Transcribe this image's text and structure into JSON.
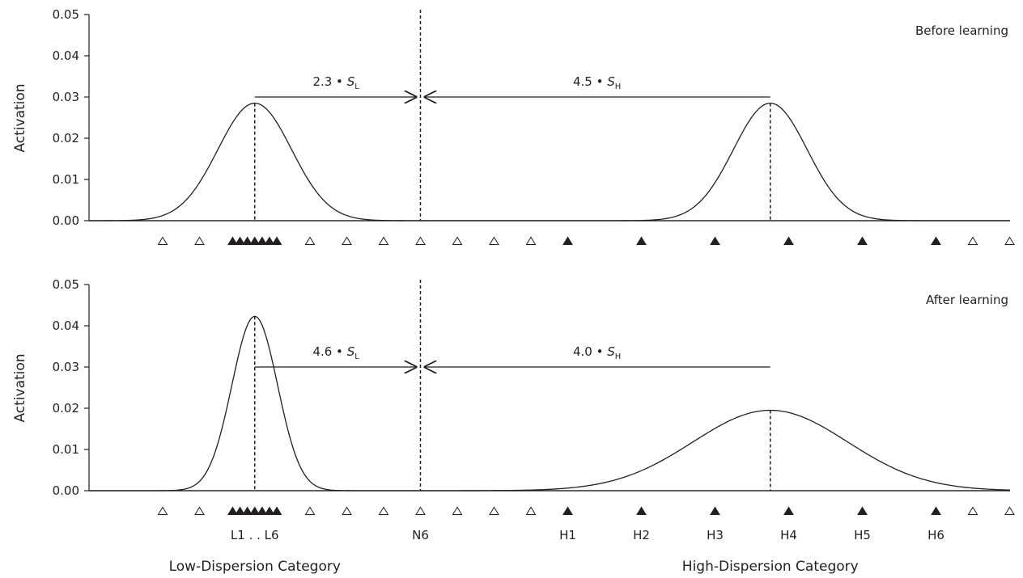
{
  "chart_data": [
    {
      "type": "line",
      "panel_title": "Before learning",
      "ylabel": "Activation",
      "ylim": [
        0,
        0.05
      ],
      "yticks": [
        "0.00",
        "0.01",
        "0.02",
        "0.03",
        "0.04",
        "0.05"
      ],
      "xrange": [
        -2,
        23
      ],
      "grid": false,
      "series": [
        {
          "mean": 2.5,
          "sd": 1.0,
          "peak": 0.0285
        },
        {
          "mean": 16.5,
          "sd": 1.0,
          "peak": 0.0285
        }
      ],
      "reference_line_x": 7,
      "annotations": [
        {
          "prefix": "2.3 • ",
          "sym": "S",
          "sub": "L",
          "from_x": 2.5,
          "to_x": 7,
          "y": 0.03
        },
        {
          "prefix": "4.5 • ",
          "sym": "S",
          "sub": "H",
          "from_x": 16.5,
          "to_x": 7,
          "y": 0.03
        }
      ]
    },
    {
      "type": "line",
      "panel_title": "After learning",
      "ylabel": "Activation",
      "ylim": [
        0,
        0.05
      ],
      "yticks": [
        "0.00",
        "0.01",
        "0.02",
        "0.03",
        "0.04",
        "0.05"
      ],
      "xrange": [
        -2,
        23
      ],
      "grid": false,
      "series": [
        {
          "mean": 2.5,
          "sd": 0.62,
          "peak": 0.0423
        },
        {
          "mean": 16.5,
          "sd": 2.1,
          "peak": 0.0195
        }
      ],
      "reference_line_x": 7,
      "annotations": [
        {
          "prefix": "4.6 • ",
          "sym": "S",
          "sub": "L",
          "from_x": 2.5,
          "to_x": 7,
          "y": 0.03
        },
        {
          "prefix": "4.0 • ",
          "sym": "S",
          "sub": "H",
          "from_x": 16.5,
          "to_x": 7,
          "y": 0.03
        }
      ]
    }
  ],
  "stimuli": {
    "open_x": [
      0,
      1,
      4,
      5,
      6,
      7,
      8,
      9,
      10,
      22,
      23
    ],
    "filled_x": [
      1.9,
      2.1,
      2.3,
      2.5,
      2.7,
      2.9,
      3.1,
      11,
      13,
      15,
      17,
      19,
      21
    ]
  },
  "x_labels": [
    {
      "text": "L1 . . L6",
      "x": 2.5
    },
    {
      "text": "N6",
      "x": 7
    },
    {
      "text": "H1",
      "x": 11
    },
    {
      "text": "H2",
      "x": 13
    },
    {
      "text": "H3",
      "x": 15
    },
    {
      "text": "H4",
      "x": 17
    },
    {
      "text": "H5",
      "x": 19
    },
    {
      "text": "H6",
      "x": 21
    }
  ],
  "category_labels": [
    {
      "text": "Low-Dispersion Category",
      "x": 2.5
    },
    {
      "text": "High-Dispersion Category",
      "x": 16.5
    }
  ]
}
